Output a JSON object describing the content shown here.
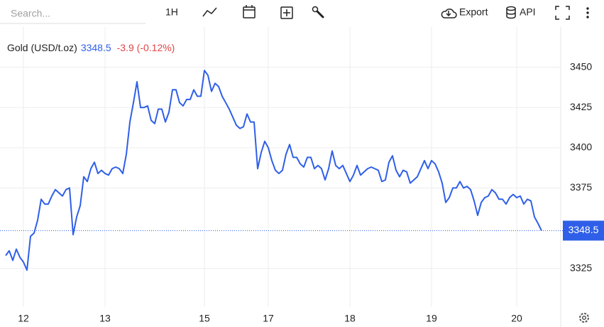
{
  "toolbar": {
    "search": "Search...",
    "interval": "1H",
    "export": "Export",
    "api": "API"
  },
  "chart_data": {
    "type": "line",
    "change": "-3.9 (-0.12%)",
    "categories": [
      null,
      null,
      null,
      null,
      null,
      "12",
      null,
      null,
      null,
      null,
      null,
      null,
      null,
      null,
      null,
      null,
      null,
      null,
      null,
      null,
      null,
      null,
      null,
      null,
      null,
      null,
      null,
      null,
      "13",
      null,
      null,
      null,
      null,
      null,
      null,
      null,
      null,
      null,
      null,
      null,
      null,
      null,
      null,
      null,
      null,
      null,
      null,
      null,
      null,
      null,
      null,
      null,
      null,
      null,
      null,
      null,
      "15",
      null,
      null,
      null,
      null,
      null,
      null,
      null,
      null,
      null,
      null,
      null,
      null,
      null,
      null,
      null,
      null,
      null,
      "17",
      null,
      null,
      null,
      null,
      null,
      null,
      null,
      null,
      null,
      null,
      null,
      null,
      null,
      null,
      null,
      null,
      null,
      null,
      null,
      null,
      null,
      null,
      "18",
      null,
      null,
      null,
      null,
      null,
      null,
      null,
      null,
      null,
      null,
      null,
      null,
      null,
      null,
      null,
      null,
      null,
      null,
      null,
      null,
      null,
      null,
      "19",
      null,
      null,
      null,
      null,
      null,
      null,
      null,
      null,
      null,
      null,
      null,
      null,
      null,
      null,
      null,
      null,
      null,
      null,
      null,
      null,
      null,
      null,
      null,
      "20",
      null,
      null,
      null,
      null,
      null,
      null,
      null
    ],
    "series": [
      {
        "name": "Gold (USD/t.oz)",
        "color": "#2f5fe8",
        "values": [
          3333,
          3336,
          3330,
          3337,
          3332,
          3329,
          3324,
          3345,
          3347,
          3355,
          3368,
          3365,
          3365,
          3370,
          3374,
          3372,
          3370,
          3374,
          3375,
          3346,
          3357,
          3364,
          3382,
          3379,
          3387,
          3391,
          3384,
          3386,
          3384,
          3383,
          3387,
          3388,
          3387,
          3384,
          3396,
          3416,
          3428,
          3441,
          3425,
          3425,
          3426,
          3417,
          3415,
          3424,
          3424,
          3416,
          3422,
          3436,
          3436,
          3428,
          3426,
          3430,
          3430,
          3436,
          3432,
          3432,
          3448,
          3445,
          3435,
          3440,
          3438,
          3432,
          3428,
          3424,
          3419,
          3414,
          3412,
          3413,
          3421,
          3416,
          3416,
          3387,
          3397,
          3404,
          3400,
          3392,
          3386,
          3384,
          3386,
          3396,
          3402,
          3394,
          3394,
          3390,
          3388,
          3394,
          3394,
          3387,
          3389,
          3387,
          3380,
          3387,
          3398,
          3389,
          3387,
          3389,
          3384,
          3379,
          3383,
          3389,
          3383,
          3385,
          3387,
          3388,
          3387,
          3386,
          3379,
          3380,
          3391,
          3395,
          3386,
          3382,
          3386,
          3385,
          3378,
          3380,
          3382,
          3387,
          3392,
          3387,
          3392,
          3390,
          3385,
          3378,
          3366,
          3369,
          3375,
          3375,
          3379,
          3375,
          3376,
          3374,
          3367,
          3358,
          3366,
          3369,
          3370,
          3374,
          3372,
          3368,
          3368,
          3365,
          3369,
          3371,
          3369,
          3370,
          3365,
          3368,
          3367,
          3357,
          3353,
          3348.5
        ]
      }
    ],
    "ylim": [
      3301,
      3475
    ],
    "yticks": [
      3325,
      3375,
      3400,
      3425,
      3450
    ],
    "grid": true,
    "change_color": "#e04646"
  }
}
